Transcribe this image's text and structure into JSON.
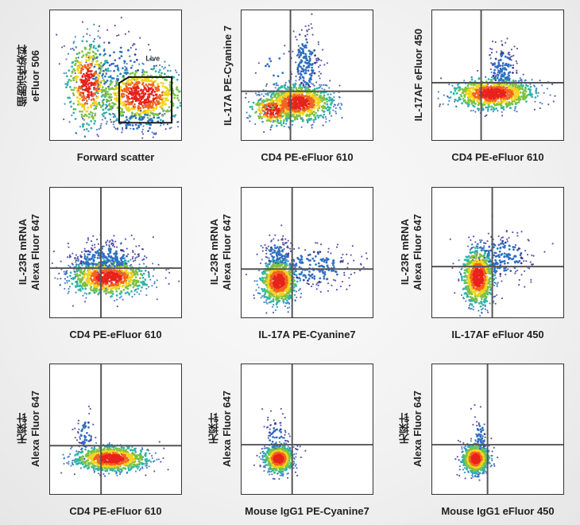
{
  "chart_data": [
    {
      "type": "scatter",
      "xlabel": "Forward scatter",
      "ylabel": [
        "细胞活性染料",
        "eFluor 506"
      ],
      "xlim": [
        0,
        1000
      ],
      "ylim": [
        0,
        1000
      ],
      "gate": {
        "type": "polygon",
        "label": "Live",
        "points": [
          [
            527,
            133
          ],
          [
            527,
            440
          ],
          [
            600,
            485
          ],
          [
            928,
            485
          ],
          [
            928,
            133
          ]
        ]
      },
      "populations": [
        {
          "cx": 700,
          "cy": 345,
          "sx": 170,
          "sy": 110,
          "n": 800
        },
        {
          "cx": 290,
          "cy": 436,
          "sx": 80,
          "sy": 170,
          "n": 450
        },
        {
          "cx": 480,
          "cy": 560,
          "sx": 160,
          "sy": 150,
          "n": 150,
          "sparse": true
        },
        {
          "cx": 700,
          "cy": 150,
          "sx": 140,
          "sy": 60,
          "n": 90,
          "sparse": true
        }
      ]
    },
    {
      "type": "scatter",
      "xlabel": "CD4 PE-eFluor 610",
      "ylabel": [
        "IL-17A PE-Cyanine 7"
      ],
      "xlim": [
        0,
        1000
      ],
      "ylim": [
        0,
        1000
      ],
      "quadrant": {
        "x": 373,
        "y": 376
      },
      "populations": [
        {
          "cx": 434,
          "cy": 285,
          "sx": 130,
          "sy": 70,
          "n": 900
        },
        {
          "cx": 240,
          "cy": 230,
          "sx": 90,
          "sy": 60,
          "n": 250
        },
        {
          "cx": 494,
          "cy": 600,
          "sx": 55,
          "sy": 150,
          "n": 200,
          "sparse": true
        },
        {
          "cx": 250,
          "cy": 520,
          "sx": 60,
          "sy": 120,
          "n": 12,
          "sparse": true
        }
      ]
    },
    {
      "type": "scatter",
      "xlabel": "CD4 PE-eFluor 610",
      "ylabel": [
        "IL-17AF eFluor 450"
      ],
      "xlim": [
        0,
        1000
      ],
      "ylim": [
        0,
        1000
      ],
      "quadrant": {
        "x": 373,
        "y": 442
      },
      "populations": [
        {
          "cx": 464,
          "cy": 358,
          "sx": 160,
          "sy": 60,
          "n": 900
        },
        {
          "cx": 540,
          "cy": 540,
          "sx": 60,
          "sy": 100,
          "n": 150,
          "sparse": true
        }
      ]
    },
    {
      "type": "scatter",
      "xlabel": "CD4 PE-eFluor 610",
      "ylabel": [
        "IL-23R mRNA",
        "Alexa Fluor 647"
      ],
      "xlim": [
        0,
        1000
      ],
      "ylim": [
        0,
        1000
      ],
      "quadrant": {
        "x": 388,
        "y": 380
      },
      "populations": [
        {
          "cx": 448,
          "cy": 307,
          "sx": 150,
          "sy": 70,
          "n": 900
        },
        {
          "cx": 420,
          "cy": 440,
          "sx": 150,
          "sy": 80,
          "n": 350,
          "sparse": true
        }
      ]
    },
    {
      "type": "scatter",
      "xlabel": "IL-17A PE-Cyanine7",
      "ylabel": [
        "IL-23R mRNA",
        "Alexa Fluor 647"
      ],
      "xlim": [
        0,
        1000
      ],
      "ylim": [
        0,
        1000
      ],
      "quadrant": {
        "x": 386,
        "y": 373
      },
      "populations": [
        {
          "cx": 283,
          "cy": 277,
          "sx": 70,
          "sy": 85,
          "n": 850
        },
        {
          "cx": 560,
          "cy": 390,
          "sx": 170,
          "sy": 90,
          "n": 220,
          "sparse": true
        },
        {
          "cx": 280,
          "cy": 480,
          "sx": 60,
          "sy": 70,
          "n": 120,
          "sparse": true
        }
      ]
    },
    {
      "type": "scatter",
      "xlabel": "IL-17AF eFluor 450",
      "ylabel": [
        "IL-23R mRNA",
        "Alexa Fluor 647"
      ],
      "xlim": [
        0,
        1000
      ],
      "ylim": [
        0,
        1000
      ],
      "quadrant": {
        "x": 458,
        "y": 392
      },
      "populations": [
        {
          "cx": 350,
          "cy": 310,
          "sx": 60,
          "sy": 110,
          "n": 800
        },
        {
          "cx": 520,
          "cy": 460,
          "sx": 130,
          "sy": 100,
          "n": 220,
          "sparse": true
        }
      ]
    },
    {
      "type": "scatter",
      "xlabel": "CD4 PE-eFluor 610",
      "ylabel": [
        "无探针",
        "Alexa Fluor 647"
      ],
      "xlim": [
        0,
        1000
      ],
      "ylim": [
        0,
        1000
      ],
      "quadrant": {
        "x": 389,
        "y": 373
      },
      "populations": [
        {
          "cx": 467,
          "cy": 271,
          "sx": 140,
          "sy": 48,
          "n": 900
        },
        {
          "cx": 270,
          "cy": 460,
          "sx": 30,
          "sy": 90,
          "n": 60,
          "sparse": true
        }
      ]
    },
    {
      "type": "scatter",
      "xlabel": "Mouse IgG1 PE-Cyanine7",
      "ylabel": [
        "无探针",
        "Alexa Fluor 647"
      ],
      "xlim": [
        0,
        1000
      ],
      "ylim": [
        0,
        1000
      ],
      "quadrant": {
        "x": 386,
        "y": 380
      },
      "populations": [
        {
          "cx": 283,
          "cy": 271,
          "sx": 55,
          "sy": 52,
          "n": 800
        },
        {
          "cx": 260,
          "cy": 430,
          "sx": 40,
          "sy": 90,
          "n": 80,
          "sparse": true
        }
      ]
    },
    {
      "type": "scatter",
      "xlabel": "Mouse IgG1 eFluor 450",
      "ylabel": [
        "无探针",
        "Alexa Fluor 647"
      ],
      "xlim": [
        0,
        1000
      ],
      "ylim": [
        0,
        1000
      ],
      "quadrant": {
        "x": 422,
        "y": 380
      },
      "populations": [
        {
          "cx": 331,
          "cy": 271,
          "sx": 50,
          "sy": 55,
          "n": 750
        },
        {
          "cx": 370,
          "cy": 420,
          "sx": 25,
          "sy": 90,
          "n": 70,
          "sparse": true
        }
      ]
    }
  ],
  "colors": {
    "density": [
      "#e8231c",
      "#f26522",
      "#f5d31a",
      "#7cc242",
      "#2fb5a8",
      "#2e6fc0",
      "#3b3b9a"
    ],
    "gate": "#111111",
    "quadrant": "#555555"
  }
}
